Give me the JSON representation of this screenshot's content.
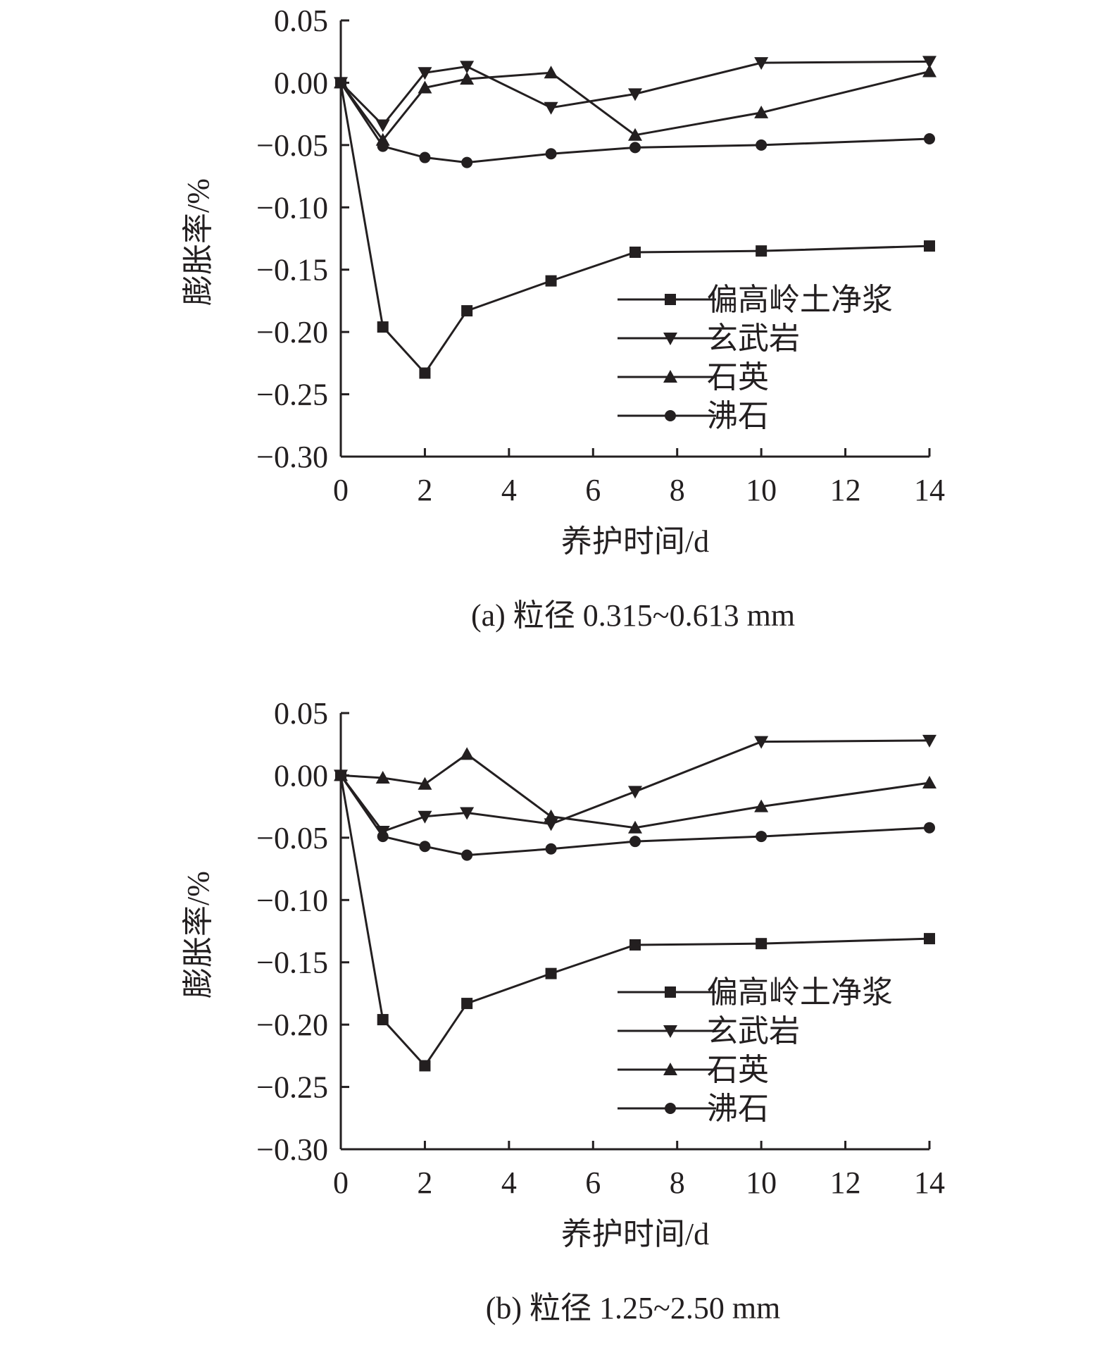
{
  "chart_data": [
    {
      "type": "line",
      "caption": "(a) 粒径 0.315~0.613 mm",
      "xlabel": "养护时间/d",
      "ylabel": "膨胀率/%",
      "xlim": [
        0,
        14
      ],
      "ylim": [
        -0.3,
        0.05
      ],
      "xticks": [
        "0",
        "2",
        "4",
        "6",
        "8",
        "10",
        "12",
        "14"
      ],
      "yticks": [
        "0.05",
        "0.00",
        "−0.05",
        "−0.10",
        "−0.15",
        "−0.20",
        "−0.25",
        "−0.30"
      ],
      "legend_position": "lower-right",
      "x": [
        0,
        1,
        2,
        3,
        5,
        7,
        10,
        14
      ],
      "series": [
        {
          "name": "偏高岭土净浆",
          "marker": "square",
          "values": [
            0,
            -0.196,
            -0.233,
            -0.183,
            -0.159,
            -0.136,
            -0.135,
            -0.131
          ]
        },
        {
          "name": "玄武岩",
          "marker": "triangle-down",
          "values": [
            0,
            -0.034,
            0.008,
            0.013,
            -0.02,
            -0.009,
            0.016,
            0.017
          ]
        },
        {
          "name": "石英",
          "marker": "triangle-up",
          "values": [
            0,
            -0.046,
            -0.004,
            0.003,
            0.008,
            -0.042,
            -0.024,
            0.009
          ]
        },
        {
          "name": "沸石",
          "marker": "circle",
          "values": [
            0,
            -0.051,
            -0.06,
            -0.064,
            -0.057,
            -0.052,
            -0.05,
            -0.045
          ]
        }
      ]
    },
    {
      "type": "line",
      "caption": "(b) 粒径 1.25~2.50 mm",
      "xlabel": "养护时间/d",
      "ylabel": "膨胀率/%",
      "xlim": [
        0,
        14
      ],
      "ylim": [
        -0.3,
        0.05
      ],
      "xticks": [
        "0",
        "2",
        "4",
        "6",
        "8",
        "10",
        "12",
        "14"
      ],
      "yticks": [
        "0.05",
        "0.00",
        "−0.05",
        "−0.10",
        "−0.15",
        "−0.20",
        "−0.25",
        "−0.30"
      ],
      "legend_position": "lower-right",
      "x": [
        0,
        1,
        2,
        3,
        5,
        7,
        10,
        14
      ],
      "series": [
        {
          "name": "偏高岭土净浆",
          "marker": "square",
          "values": [
            0,
            -0.196,
            -0.233,
            -0.183,
            -0.159,
            -0.136,
            -0.135,
            -0.131
          ]
        },
        {
          "name": "玄武岩",
          "marker": "triangle-down",
          "values": [
            0,
            -0.045,
            -0.033,
            -0.03,
            -0.039,
            -0.013,
            0.027,
            0.028
          ]
        },
        {
          "name": "石英",
          "marker": "triangle-up",
          "values": [
            0,
            -0.002,
            -0.007,
            0.017,
            -0.033,
            -0.042,
            -0.025,
            -0.006
          ]
        },
        {
          "name": "沸石",
          "marker": "circle",
          "values": [
            0,
            -0.049,
            -0.057,
            -0.064,
            -0.059,
            -0.053,
            -0.049,
            -0.042
          ]
        }
      ]
    }
  ]
}
